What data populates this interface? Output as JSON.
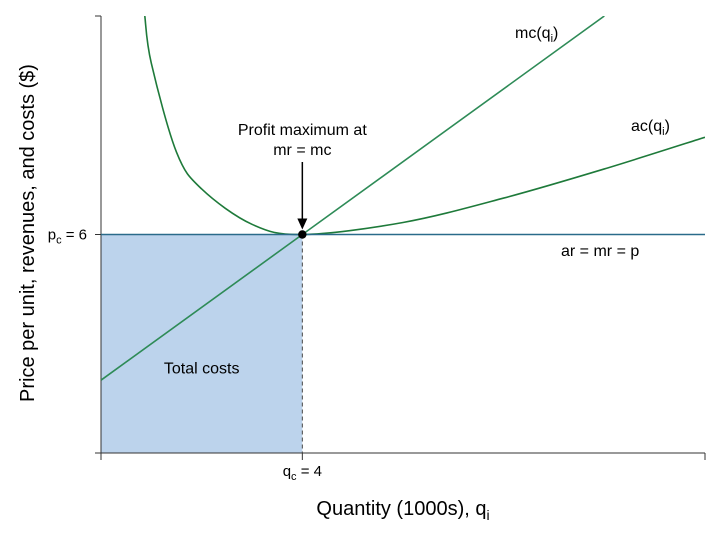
{
  "chart_data": {
    "type": "line",
    "title": "",
    "xlabel": {
      "text": "Quantity (1000s), q",
      "sub": "i"
    },
    "ylabel": "Price per unit, revenues, and costs ($)",
    "xlim": [
      0,
      12
    ],
    "ylim": [
      0,
      12
    ],
    "x_ticks": [
      {
        "x": 4,
        "main": "q",
        "sub": "c",
        "rest": " = 4"
      }
    ],
    "y_ticks": [
      {
        "y": 6,
        "main": "p",
        "sub": "c",
        "rest": " = 6"
      }
    ],
    "series": [
      {
        "name": "mc(qi)",
        "label": {
          "main": "mc(q",
          "sub": "i",
          "end": ")"
        },
        "color": "#2e8b57",
        "x": [
          0,
          4,
          10
        ],
        "y": [
          2,
          6,
          12
        ]
      },
      {
        "name": "ac(qi)",
        "label": {
          "main": "ac(q",
          "sub": "i",
          "end": ")"
        },
        "color": "#1e7a3a",
        "x": [
          0.87,
          1,
          1.5,
          2,
          3,
          4,
          6,
          8,
          10,
          12
        ],
        "y": [
          12,
          10.7,
          8.26,
          7.25,
          6.28,
          6,
          6.33,
          7,
          7.8,
          8.67
        ]
      },
      {
        "name": "ar = mr = p",
        "label": {
          "main": "ar = mr = p",
          "sub": "",
          "end": ""
        },
        "color": "#2a6b8a",
        "x": [
          0,
          12
        ],
        "y": [
          6,
          6
        ]
      }
    ],
    "shaded_region": {
      "label": "Total costs",
      "x": [
        0,
        4
      ],
      "y": [
        0,
        6
      ],
      "color": "#bcd3ec"
    },
    "annotation": {
      "lines": [
        "Profit maximum at",
        "mr = mc"
      ],
      "point": [
        4,
        6
      ]
    }
  }
}
